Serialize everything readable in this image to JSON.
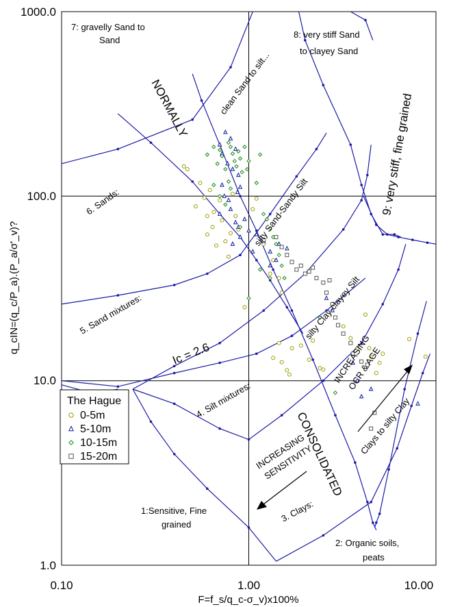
{
  "chart_data": {
    "type": "scatter",
    "xscale": "log",
    "yscale": "log",
    "xlim": [
      0.1,
      10
    ],
    "ylim": [
      1,
      1000
    ],
    "x_ticks": [
      "0.10",
      "1.00",
      "10.00"
    ],
    "y_ticks": [
      "1.0",
      "10.0",
      "100.0",
      "1000.0"
    ],
    "grid": true,
    "xlabel": "F=f_s/q_c-σ_v)x100%",
    "ylabel": "q_cIN=(q_c/P_a).(P_a/σ'_v)?",
    "colors": {
      "boundary": "#1a1aa6",
      "s0_5": "#9a9a00",
      "s5_10": "#0a1a9a",
      "s10_15": "#1a8a1a",
      "s15_20": "#555555"
    },
    "legend": {
      "title": "The Hague",
      "position": "left"
    },
    "zone_labels": [
      "7: gravelly Sand to",
      "Sand",
      "8: very stiff Sand",
      "to clayey Sand",
      "NORMALLY",
      "clean Sand to silt...",
      "9: very stiff, fine grained",
      "6. Sands:",
      "silty Sand-Sandy Silt",
      "5. Sand mixtures:",
      "silty Clay-clayey Silt",
      "Ic = 2.6",
      "INCREASING",
      "OCR & AGE",
      "4. Silt mixtures:",
      "CONSOLIDATED",
      "Clays to silty Clay",
      "INCREASING",
      "SENSITIVITY",
      "1:Sensitive, Fine",
      "grained",
      "3. Clays:",
      "2: Organic soils,",
      "peats"
    ],
    "series": [
      {
        "name": "0-5m",
        "marker": "circle",
        "points": [
          [
            0.45,
            145
          ],
          [
            0.47,
            140
          ],
          [
            0.52,
            88
          ],
          [
            0.55,
            118
          ],
          [
            0.58,
            98
          ],
          [
            0.6,
            78
          ],
          [
            0.6,
            62
          ],
          [
            0.62,
            108
          ],
          [
            0.64,
            68
          ],
          [
            0.65,
            82
          ],
          [
            0.67,
            54
          ],
          [
            0.7,
            95
          ],
          [
            0.72,
            74
          ],
          [
            0.75,
            57
          ],
          [
            0.78,
            47
          ],
          [
            0.8,
            63
          ],
          [
            0.82,
            103
          ],
          [
            0.85,
            78
          ],
          [
            0.88,
            66
          ],
          [
            0.95,
            25
          ],
          [
            1.05,
            85
          ],
          [
            1.1,
            97
          ],
          [
            1.2,
            55
          ],
          [
            1.3,
            38
          ],
          [
            1.35,
            45
          ],
          [
            1.45,
            36
          ],
          [
            1.5,
            30
          ],
          [
            1.35,
            13.3
          ],
          [
            1.45,
            16
          ],
          [
            1.5,
            12.6
          ],
          [
            1.6,
            11.4
          ],
          [
            1.65,
            10.8
          ],
          [
            1.7,
            15
          ],
          [
            1.9,
            15.5
          ],
          [
            2.1,
            13
          ],
          [
            2.2,
            16.5
          ],
          [
            2.4,
            11.7
          ],
          [
            2.5,
            11.5
          ],
          [
            3.2,
            19.7
          ],
          [
            3.5,
            17
          ],
          [
            3.8,
            15
          ],
          [
            4.2,
            22.8
          ],
          [
            4.4,
            15
          ],
          [
            4.5,
            13.5
          ],
          [
            4.8,
            11
          ],
          [
            5.0,
            12.5
          ],
          [
            5.2,
            14
          ],
          [
            7.2,
            16.8
          ],
          [
            8.8,
            13.5
          ]
        ]
      },
      {
        "name": "5-10m",
        "marker": "triangle",
        "points": [
          [
            0.7,
            190
          ],
          [
            0.72,
            170
          ],
          [
            0.75,
            222
          ],
          [
            0.77,
            150
          ],
          [
            0.8,
            205
          ],
          [
            0.82,
            140
          ],
          [
            0.85,
            180
          ],
          [
            0.88,
            130
          ],
          [
            0.9,
            112
          ],
          [
            0.72,
            115
          ],
          [
            0.74,
            100
          ],
          [
            0.78,
            95
          ],
          [
            0.8,
            85
          ],
          [
            0.7,
            80
          ],
          [
            0.85,
            72
          ],
          [
            0.88,
            68
          ],
          [
            0.9,
            60
          ],
          [
            0.95,
            75
          ],
          [
            1.0,
            65
          ],
          [
            1.05,
            50
          ],
          [
            1.1,
            62
          ],
          [
            1.2,
            57
          ],
          [
            1.3,
            50
          ],
          [
            1.4,
            45
          ],
          [
            1.45,
            55
          ],
          [
            1.3,
            42
          ],
          [
            1.6,
            52
          ],
          [
            0.82,
            55
          ],
          [
            0.87,
            105
          ],
          [
            2.6,
            28
          ],
          [
            2.8,
            24
          ],
          [
            3.6,
            12.5
          ],
          [
            3.8,
            10
          ],
          [
            4.5,
            9
          ],
          [
            4.0,
            8.2
          ],
          [
            8.0,
            7.5
          ]
        ]
      },
      {
        "name": "10-15m",
        "marker": "diamond",
        "points": [
          [
            0.6,
            168
          ],
          [
            0.65,
            185
          ],
          [
            0.68,
            150
          ],
          [
            0.7,
            178
          ],
          [
            0.72,
            165
          ],
          [
            0.75,
            140
          ],
          [
            0.78,
            195
          ],
          [
            0.8,
            185
          ],
          [
            0.82,
            170
          ],
          [
            0.84,
            155
          ],
          [
            0.86,
            145
          ],
          [
            0.88,
            175
          ],
          [
            0.9,
            160
          ],
          [
            0.92,
            135
          ],
          [
            0.95,
            185
          ],
          [
            0.98,
            140
          ],
          [
            1.0,
            155
          ],
          [
            1.1,
            118
          ],
          [
            1.15,
            168
          ],
          [
            1.2,
            80
          ],
          [
            1.25,
            75
          ],
          [
            1.3,
            67
          ],
          [
            1.35,
            60
          ],
          [
            1.4,
            55
          ],
          [
            1.45,
            48
          ],
          [
            1.5,
            42
          ],
          [
            0.75,
            90
          ],
          [
            0.7,
            100
          ],
          [
            0.78,
            120
          ],
          [
            0.8,
            110
          ],
          [
            0.65,
            115
          ],
          [
            0.9,
            68
          ],
          [
            1.15,
            40
          ],
          [
            1.3,
            36
          ],
          [
            1.55,
            36
          ],
          [
            2.4,
            22
          ],
          [
            2.9,
            8.6
          ],
          [
            1.0,
            28
          ]
        ]
      },
      {
        "name": "15-20m",
        "marker": "square",
        "points": [
          [
            1.2,
            58
          ],
          [
            1.4,
            60
          ],
          [
            1.5,
            53
          ],
          [
            1.6,
            48
          ],
          [
            1.7,
            44
          ],
          [
            1.8,
            40
          ],
          [
            1.9,
            42
          ],
          [
            2.0,
            38
          ],
          [
            2.1,
            39
          ],
          [
            2.2,
            41
          ],
          [
            2.3,
            36
          ],
          [
            2.5,
            34
          ],
          [
            2.6,
            30
          ],
          [
            2.7,
            35
          ],
          [
            2.8,
            26
          ],
          [
            2.9,
            22
          ],
          [
            3.0,
            20
          ],
          [
            3.2,
            18
          ],
          [
            3.5,
            16
          ],
          [
            3.6,
            14
          ],
          [
            4.0,
            12.7
          ],
          [
            4.3,
            12.2
          ],
          [
            4.7,
            6.7
          ],
          [
            4.5,
            5.5
          ]
        ]
      }
    ],
    "boundaries": [
      [
        [
          0.1,
          150
        ],
        [
          0.2,
          180
        ],
        [
          0.5,
          260
        ],
        [
          0.8,
          500
        ],
        [
          1.05,
          1000
        ]
      ],
      [
        [
          0.1,
          26
        ],
        [
          0.2,
          29
        ],
        [
          0.4,
          33
        ],
        [
          0.6,
          38
        ],
        [
          0.9,
          48
        ],
        [
          1.3,
          80
        ],
        [
          1.8,
          128
        ],
        [
          2.3,
          180
        ],
        [
          2.6,
          220
        ]
      ],
      [
        [
          0.1,
          10
        ],
        [
          0.2,
          9.3
        ],
        [
          0.4,
          11
        ],
        [
          0.7,
          12.5
        ],
        [
          1.1,
          14
        ],
        [
          1.7,
          17.5
        ],
        [
          2.6,
          24
        ],
        [
          4.2,
          36
        ]
      ],
      [
        [
          0.24,
          9
        ],
        [
          0.4,
          12
        ],
        [
          0.7,
          16
        ],
        [
          1.2,
          24
        ],
        [
          2.0,
          38
        ],
        [
          3.2,
          66
        ],
        [
          4.0,
          95
        ],
        [
          4.3,
          130
        ],
        [
          4.5,
          190
        ]
      ],
      [
        [
          0.24,
          9
        ],
        [
          0.4,
          7.5
        ],
        [
          0.7,
          5.5
        ],
        [
          1.0,
          4.8
        ],
        [
          1.5,
          6.5
        ],
        [
          2.5,
          10
        ],
        [
          4.0,
          16
        ],
        [
          5.2,
          26
        ],
        [
          6.3,
          40
        ],
        [
          6.9,
          55
        ]
      ],
      [
        [
          0.24,
          9
        ],
        [
          0.3,
          6
        ],
        [
          0.4,
          4
        ],
        [
          0.6,
          2.6
        ],
        [
          1.0,
          1.6
        ],
        [
          1.4,
          1.05
        ]
      ],
      [
        [
          1.4,
          1.05
        ],
        [
          2.5,
          1.45
        ],
        [
          4.5,
          2.2
        ],
        [
          6.2,
          4.3
        ],
        [
          7.4,
          7.3
        ],
        [
          8.5,
          11
        ],
        [
          9.3,
          14
        ]
      ],
      [
        [
          4.7,
          1.6
        ],
        [
          4.8,
          1.7
        ],
        [
          5.0,
          1.9
        ],
        [
          5.6,
          3.3
        ],
        [
          6.8,
          9
        ],
        [
          8.0,
          18
        ],
        [
          8.9,
          27
        ]
      ],
      [
        [
          4.1,
          100
        ],
        [
          4.8,
          70
        ],
        [
          5.5,
          62
        ],
        [
          6.3,
          60
        ],
        [
          7.5,
          58
        ],
        [
          9.0,
          56
        ],
        [
          10.0,
          55
        ]
      ],
      [
        [
          0.5,
          460
        ],
        [
          0.56,
          330
        ],
        [
          0.7,
          190
        ],
        [
          0.9,
          100
        ],
        [
          1.1,
          65
        ],
        [
          1.35,
          40
        ],
        [
          1.7,
          24
        ],
        [
          2.2,
          13
        ],
        [
          2.9,
          6.5
        ],
        [
          3.7,
          3.6
        ],
        [
          4.3,
          2.2
        ],
        [
          4.6,
          1.7
        ],
        [
          4.8,
          1.55
        ]
      ],
      [
        [
          0.2,
          280
        ],
        [
          0.3,
          195
        ],
        [
          0.5,
          120
        ],
        [
          0.7,
          80
        ],
        [
          0.9,
          60
        ],
        [
          1.1,
          45
        ],
        [
          1.3,
          35
        ],
        [
          1.6,
          25
        ],
        [
          1.95,
          18
        ]
      ],
      [
        [
          1.85,
          1000
        ],
        [
          2.0,
          700
        ],
        [
          2.5,
          400
        ],
        [
          3.5,
          190
        ],
        [
          4.0,
          115
        ],
        [
          4.5,
          80
        ],
        [
          5.2,
          62
        ],
        [
          6.0,
          62
        ],
        [
          6.5,
          60
        ]
      ],
      [
        [
          3.5,
          1000
        ],
        [
          4.2,
          900
        ],
        [
          4.6,
          700
        ]
      ],
      [
        [
          0.1,
          9.5
        ],
        [
          0.15,
          8.5
        ],
        [
          0.2,
          9
        ]
      ]
    ]
  }
}
